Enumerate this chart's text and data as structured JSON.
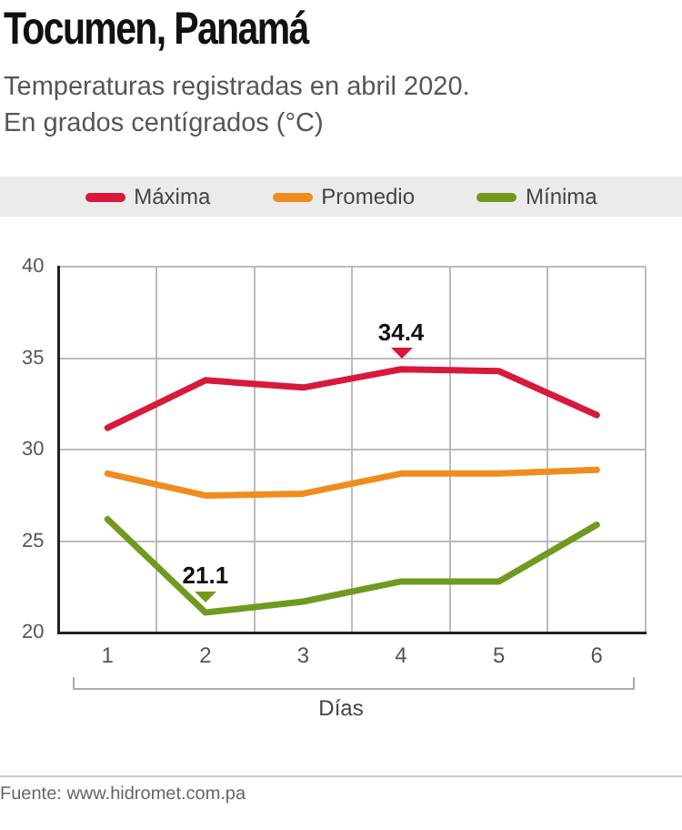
{
  "chart_data": {
    "type": "line",
    "title": "Tocumen, Panamá",
    "subtitle": "Temperaturas registradas en abril 2020.\nEn grados centígrados (°C)",
    "xlabel": "Días",
    "categories": [
      "1",
      "2",
      "3",
      "4",
      "5",
      "6"
    ],
    "series": [
      {
        "name": "Máxima",
        "color": "#d7193a",
        "values": [
          31.2,
          33.8,
          33.4,
          34.4,
          34.3,
          31.9
        ]
      },
      {
        "name": "Promedio",
        "color": "#f08c1e",
        "values": [
          28.7,
          27.5,
          27.6,
          28.7,
          28.7,
          28.9
        ]
      },
      {
        "name": "Mínima",
        "color": "#6f9a1e",
        "values": [
          26.2,
          21.1,
          21.7,
          22.8,
          22.8,
          25.9
        ]
      }
    ],
    "ylim": [
      20,
      40
    ],
    "yticks": [
      20,
      25,
      30,
      35,
      40
    ],
    "grid": true,
    "legend": "top",
    "marker": "none",
    "line_style": "solid",
    "annotations": [
      {
        "text": "34.4",
        "x": "4",
        "y": 34.4
      },
      {
        "text": "21.1",
        "x": "2",
        "y": 21.1
      },
      "Fuente: www.hidromet.com.pa"
    ]
  }
}
